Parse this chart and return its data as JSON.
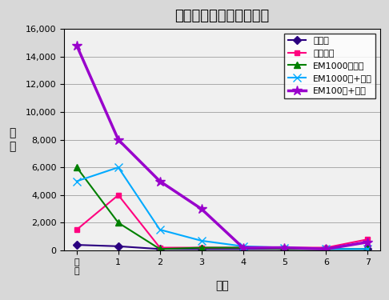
{
  "title": "茶葉表面微生物数の変化",
  "xlabel": "日数",
  "ylabel": "菌\n数",
  "x_labels": [
    "直\n後",
    "1",
    "2",
    "3",
    "4",
    "5",
    "6",
    "7"
  ],
  "x_values": [
    0,
    1,
    2,
    3,
    4,
    5,
    6,
    7
  ],
  "ylim": [
    0,
    16000
  ],
  "yticks": [
    0,
    2000,
    4000,
    6000,
    8000,
    10000,
    12000,
    14000,
    16000
  ],
  "series": [
    {
      "label": "水のみ",
      "color": "#2B0080",
      "marker": "D",
      "linewidth": 1.5,
      "markersize": 5,
      "values": [
        400,
        300,
        100,
        100,
        100,
        100,
        100,
        100
      ]
    },
    {
      "label": "本品のみ",
      "color": "#FF007F",
      "marker": "s",
      "linewidth": 1.5,
      "markersize": 5,
      "values": [
        1500,
        4000,
        200,
        200,
        200,
        200,
        200,
        800
      ]
    },
    {
      "label": "EM1000倍のみ",
      "color": "#008000",
      "marker": "^",
      "linewidth": 1.5,
      "markersize": 6,
      "values": [
        6000,
        2000,
        100,
        200,
        200,
        100,
        100,
        100
      ]
    },
    {
      "label": "EM1000倍+本品",
      "color": "#00AAFF",
      "marker": "x",
      "linewidth": 1.5,
      "markersize": 7,
      "values": [
        5000,
        6000,
        1500,
        700,
        300,
        200,
        100,
        100
      ]
    },
    {
      "label": "EM100倍+本品",
      "color": "#9900CC",
      "marker": "*",
      "linewidth": 2.5,
      "markersize": 9,
      "values": [
        14800,
        8000,
        5000,
        3000,
        200,
        200,
        100,
        600
      ]
    }
  ],
  "background_color": "#d8d8d8",
  "plot_bg_color": "#f0f0f0",
  "grid_color": "#aaaaaa",
  "title_fontsize": 13,
  "axis_label_fontsize": 10,
  "tick_fontsize": 8,
  "legend_fontsize": 8
}
